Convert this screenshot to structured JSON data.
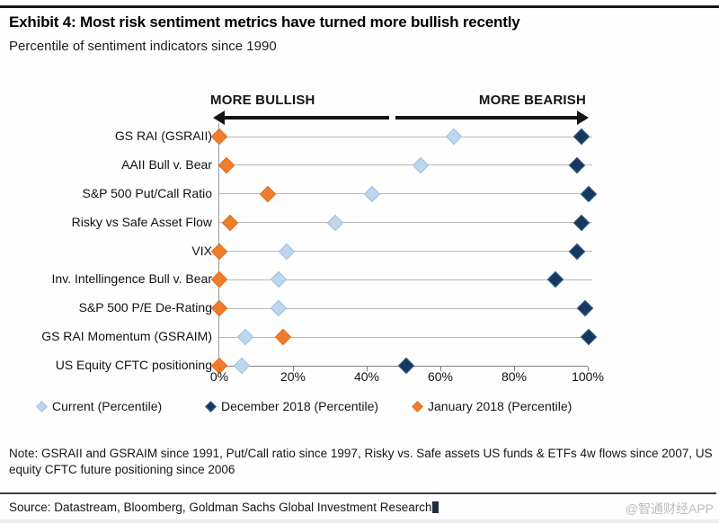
{
  "header": {
    "title": "Exhibit 4: Most risk sentiment metrics have turned more bullish recently",
    "subtitle": "Percentile of sentiment indicators since 1990"
  },
  "chart_data": {
    "type": "scatter",
    "variant": "dot-plot",
    "title": "Exhibit 4: Most risk sentiment metrics have turned more bullish recently",
    "subtitle": "Percentile of sentiment indicators since 1990",
    "direction_labels": {
      "left": "MORE BULLISH",
      "right": "MORE BEARISH"
    },
    "categories": [
      "GS RAI (GSRAII)",
      "AAII Bull v. Bear",
      "S&P 500 Put/Call Ratio",
      "Risky vs Safe Asset Flow",
      "VIX",
      "Inv. Intellingence Bull v. Bear",
      "S&P 500 P/E De-Rating",
      "GS RAI Momentum (GSRAIM)",
      "US Equity CFTC positioning"
    ],
    "series": [
      {
        "name": "Current (Percentile)",
        "color": "#BDD7EE",
        "border": "#9EC3E2",
        "values": [
          63,
          54,
          41,
          31,
          18,
          16,
          16,
          7,
          6
        ]
      },
      {
        "name": "December 2018 (Percentile)",
        "color": "#17375E",
        "border": "#2E5E8E",
        "values": [
          97,
          96,
          99,
          97,
          96,
          90,
          98,
          99,
          50
        ]
      },
      {
        "name": "January 2018 (Percentile)",
        "color": "#EE7D2D",
        "border": "#DD6E1E",
        "values": [
          0,
          2,
          13,
          3,
          0,
          0,
          0,
          17,
          0
        ]
      }
    ],
    "xlim": [
      0,
      100
    ],
    "x_ticks": [
      "0%",
      "20%",
      "40%",
      "60%",
      "80%",
      "100%"
    ],
    "legend_position": "bottom",
    "grid": "horizontal-row-lines"
  },
  "footer": {
    "note": "Note: GSRAII and GSRAIM since 1991, Put/Call ratio since 1997, Risky vs. Safe assets US funds & ETFs 4w flows since 2007, US equity CFTC future positioning since 2006",
    "source": "Source: Datastream, Bloomberg, Goldman Sachs Global Investment Research",
    "watermark": "@智通财经APP"
  }
}
